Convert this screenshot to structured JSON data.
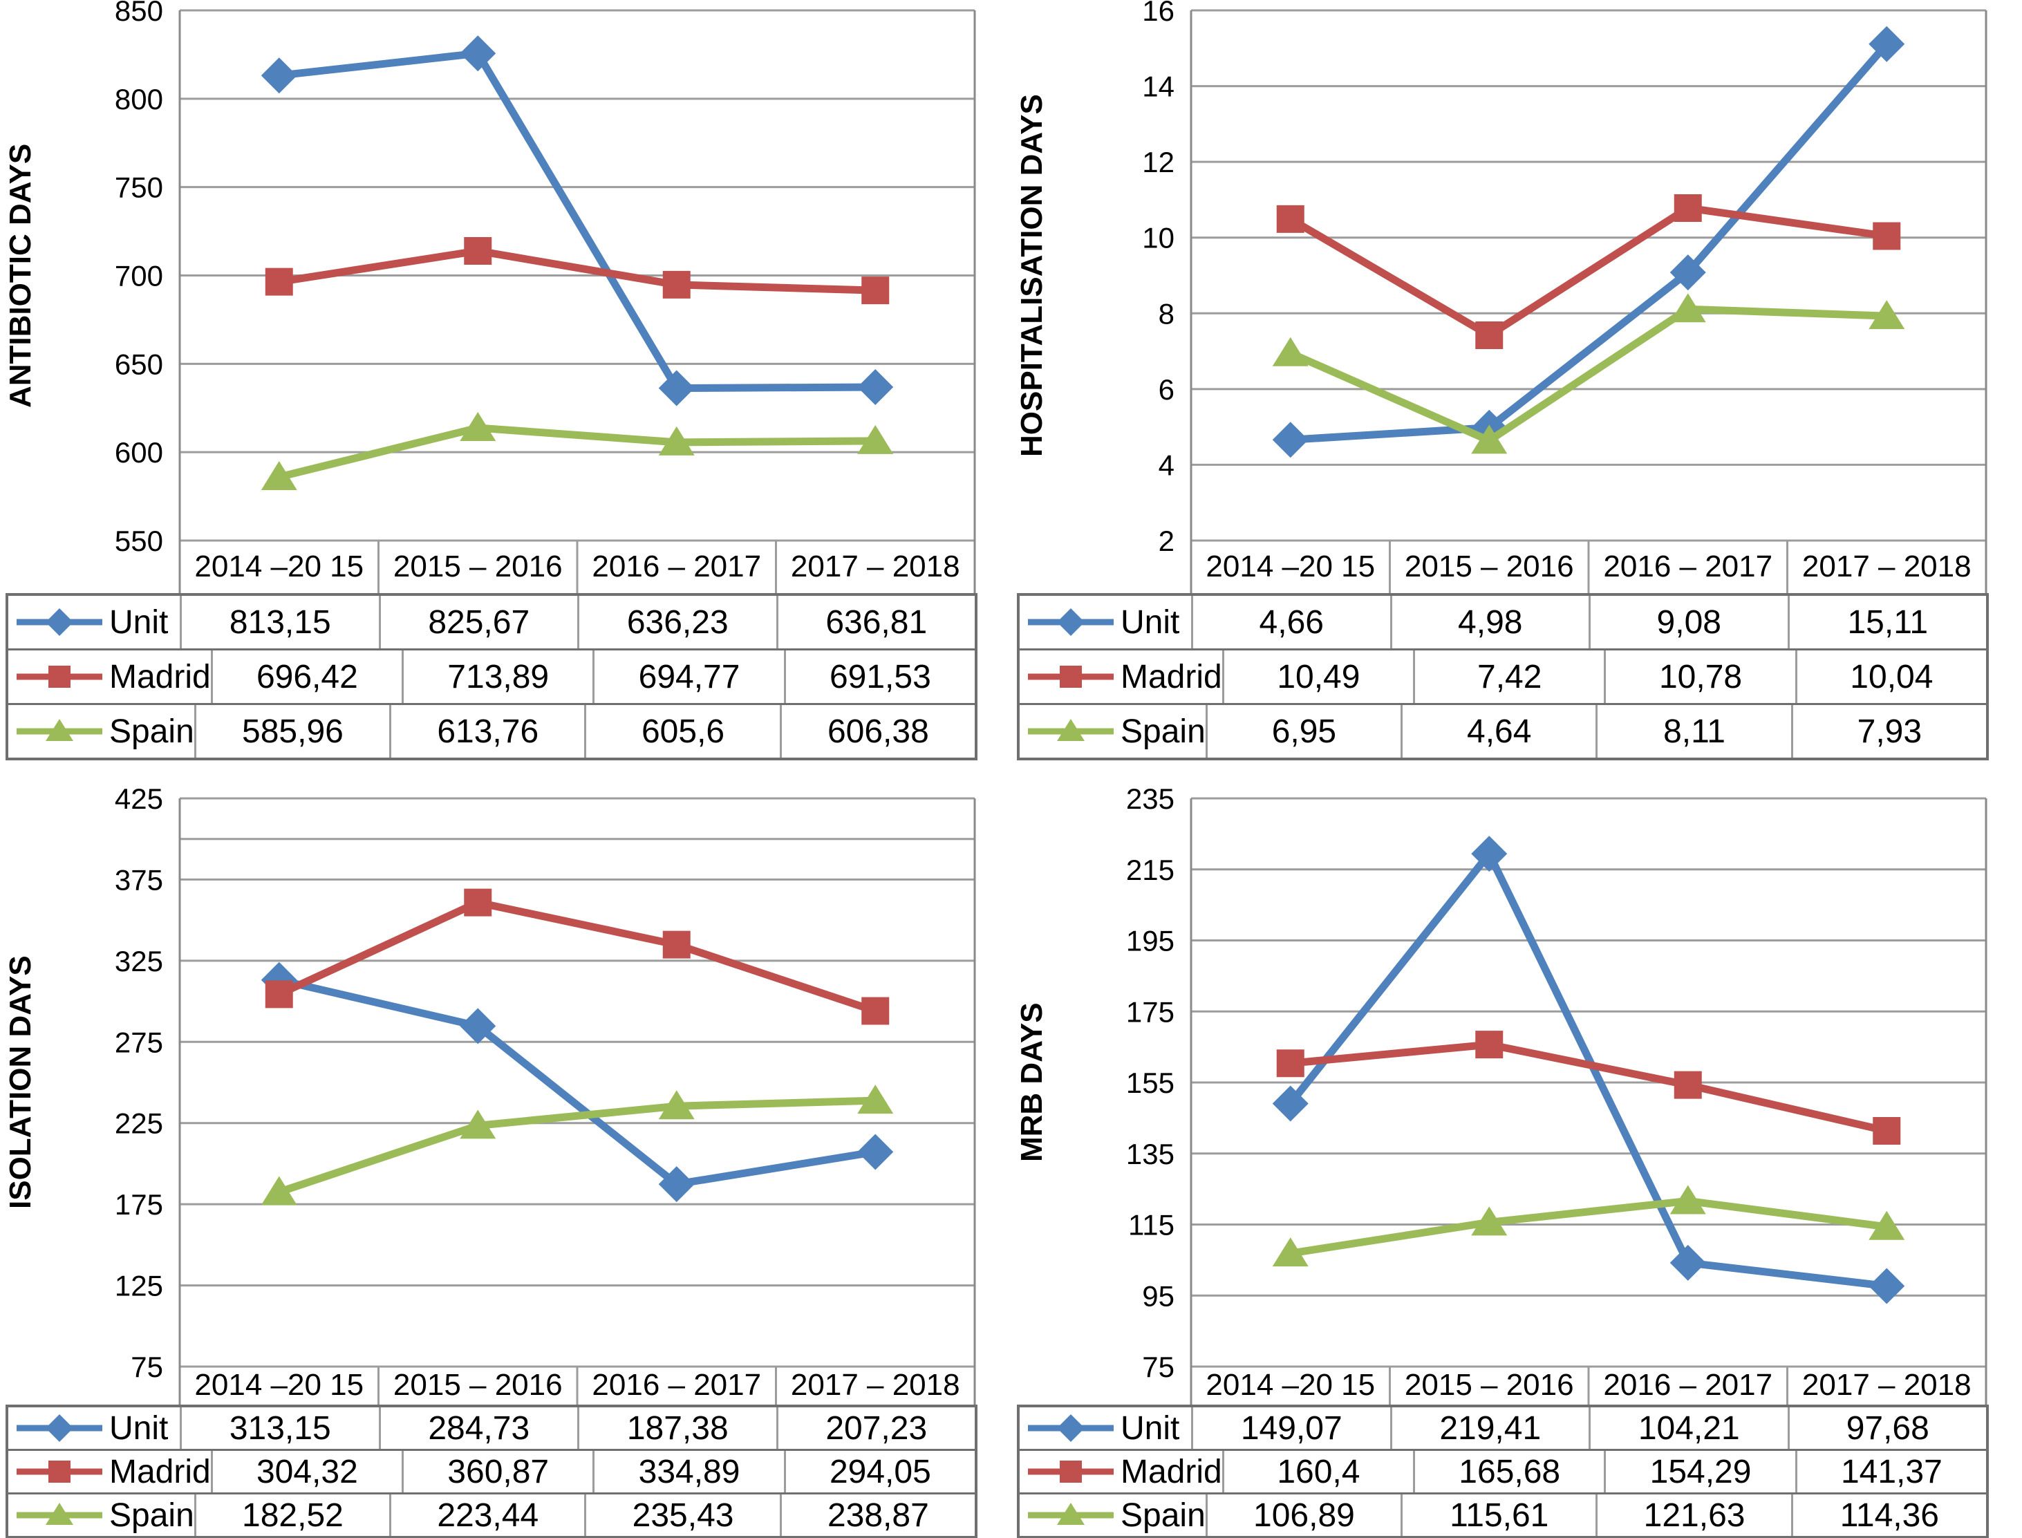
{
  "page": {
    "background": "#ffffff"
  },
  "legend": {
    "series_names": [
      "Unit",
      "Madrid",
      "Spain"
    ],
    "colors": {
      "unit_blue": "#4F81BD",
      "madrid_red": "#C0504D",
      "spain_green": "#9BBB59"
    },
    "gridline_gray": "#9c9c9c",
    "axis_gray": "#8a8a8a"
  },
  "chart_data": [
    {
      "type": "line",
      "title": "",
      "xlabel": "",
      "ylabel": "ANTIBIOTIC DAYS",
      "grid": true,
      "legend_position": "table-left",
      "categories": [
        "2014 –20 15",
        "2015 – 2016",
        "2016 – 2017",
        "2017 – 2018"
      ],
      "y_axis": {
        "min": 550,
        "max": 850,
        "step": 50,
        "ticks": [
          "850",
          "800",
          "750",
          "700",
          "650",
          "600",
          "550"
        ],
        "extra_gridlines": []
      },
      "series": [
        {
          "name": "Unit",
          "color": "#4F81BD",
          "marker": "diamond",
          "values": [
            813.15,
            825.67,
            636.23,
            636.81
          ],
          "labels": [
            "813,15",
            "825,67",
            "636,23",
            "636,81"
          ]
        },
        {
          "name": "Madrid",
          "color": "#C0504D",
          "marker": "square",
          "values": [
            696.42,
            713.89,
            694.77,
            691.53
          ],
          "labels": [
            "696,42",
            "713,89",
            "694,77",
            "691,53"
          ]
        },
        {
          "name": "Spain",
          "color": "#9BBB59",
          "marker": "triangle",
          "values": [
            585.96,
            613.76,
            605.6,
            606.38
          ],
          "labels": [
            "585,96",
            "613,76",
            "605,6",
            "606,38"
          ]
        }
      ]
    },
    {
      "type": "line",
      "title": "",
      "xlabel": "",
      "ylabel": "HOSPITALISATION DAYS",
      "grid": true,
      "legend_position": "table-left",
      "categories": [
        "2014 –20 15",
        "2015 – 2016",
        "2016 – 2017",
        "2017 – 2018"
      ],
      "y_axis": {
        "min": 2,
        "max": 16,
        "step": 2,
        "ticks": [
          "16",
          "14",
          "12",
          "10",
          "8",
          "6",
          "4",
          "2"
        ],
        "extra_gridlines": []
      },
      "series": [
        {
          "name": "Unit",
          "color": "#4F81BD",
          "marker": "diamond",
          "values": [
            4.66,
            4.98,
            9.08,
            15.11
          ],
          "labels": [
            "4,66",
            "4,98",
            "9,08",
            "15,11"
          ]
        },
        {
          "name": "Madrid",
          "color": "#C0504D",
          "marker": "square",
          "values": [
            10.49,
            7.42,
            10.78,
            10.04
          ],
          "labels": [
            "10,49",
            "7,42",
            "10,78",
            "10,04"
          ]
        },
        {
          "name": "Spain",
          "color": "#9BBB59",
          "marker": "triangle",
          "values": [
            6.95,
            4.64,
            8.11,
            7.93
          ],
          "labels": [
            "6,95",
            "4,64",
            "8,11",
            "7,93"
          ]
        }
      ]
    },
    {
      "type": "line",
      "title": "",
      "xlabel": "",
      "ylabel": "ISOLATION DAYS",
      "grid": true,
      "legend_position": "table-left",
      "categories": [
        "2014 –20 15",
        "2015 – 2016",
        "2016 – 2017",
        "2017 – 2018"
      ],
      "y_axis": {
        "min": 75,
        "max": 425,
        "step": 50,
        "ticks": [
          "425",
          "375",
          "325",
          "275",
          "225",
          "175",
          "125",
          "75"
        ],
        "extra_gridlines": [
          400
        ]
      },
      "series": [
        {
          "name": "Unit",
          "color": "#4F81BD",
          "marker": "diamond",
          "values": [
            313.15,
            284.73,
            187.38,
            207.23
          ],
          "labels": [
            "313,15",
            "284,73",
            "187,38",
            "207,23"
          ]
        },
        {
          "name": "Madrid",
          "color": "#C0504D",
          "marker": "square",
          "values": [
            304.32,
            360.87,
            334.89,
            294.05
          ],
          "labels": [
            "304,32",
            "360,87",
            "334,89",
            "294,05"
          ]
        },
        {
          "name": "Spain",
          "color": "#9BBB59",
          "marker": "triangle",
          "values": [
            182.52,
            223.44,
            235.43,
            238.87
          ],
          "labels": [
            "182,52",
            "223,44",
            "235,43",
            "238,87"
          ]
        }
      ]
    },
    {
      "type": "line",
      "title": "",
      "xlabel": "",
      "ylabel": "MRB DAYS",
      "grid": true,
      "legend_position": "table-left",
      "categories": [
        "2014 –20 15",
        "2015 – 2016",
        "2016 – 2017",
        "2017 – 2018"
      ],
      "y_axis": {
        "min": 75,
        "max": 235,
        "step": 20,
        "ticks": [
          "235",
          "215",
          "195",
          "175",
          "155",
          "135",
          "115",
          "95",
          "75"
        ],
        "extra_gridlines": []
      },
      "series": [
        {
          "name": "Unit",
          "color": "#4F81BD",
          "marker": "diamond",
          "values": [
            149.07,
            219.41,
            104.21,
            97.68
          ],
          "labels": [
            "149,07",
            "219,41",
            "104,21",
            "97,68"
          ]
        },
        {
          "name": "Madrid",
          "color": "#C0504D",
          "marker": "square",
          "values": [
            160.4,
            165.68,
            154.29,
            141.37
          ],
          "labels": [
            "160,4",
            "165,68",
            "154,29",
            "141,37"
          ]
        },
        {
          "name": "Spain",
          "color": "#9BBB59",
          "marker": "triangle",
          "values": [
            106.89,
            115.61,
            121.63,
            114.36
          ],
          "labels": [
            "106,89",
            "115,61",
            "121,63",
            "114,36"
          ]
        }
      ]
    }
  ]
}
